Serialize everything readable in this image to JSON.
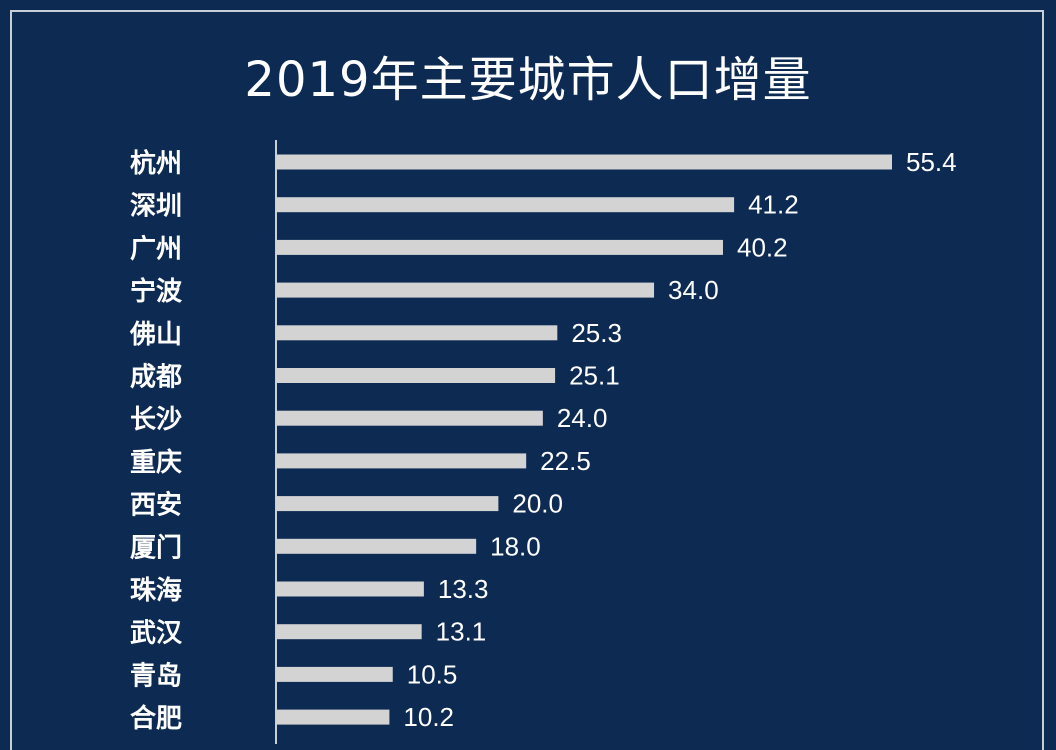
{
  "chart_data": {
    "type": "bar",
    "orientation": "horizontal",
    "title": "2019年主要城市人口增量",
    "categories": [
      "杭州",
      "深圳",
      "广州",
      "宁波",
      "佛山",
      "成都",
      "长沙",
      "重庆",
      "西安",
      "厦门",
      "珠海",
      "武汉",
      "青岛",
      "合肥"
    ],
    "values": [
      55.4,
      41.2,
      40.2,
      34.0,
      25.3,
      25.1,
      24.0,
      22.5,
      20.0,
      18.0,
      13.3,
      13.1,
      10.5,
      10.2
    ],
    "value_labels": [
      "55.4",
      "41.2",
      "40.2",
      "34.0",
      "25.3",
      "25.1",
      "24.0",
      "22.5",
      "20.0",
      "18.0",
      "13.3",
      "13.1",
      "10.5",
      "10.2"
    ],
    "xlabel": "",
    "ylabel": "",
    "xlim": [
      0,
      55.4
    ],
    "grid": false,
    "legend": "none",
    "bar_color": "#d3d3d3",
    "background_color": "#0d2a52",
    "text_color": "#ffffff"
  }
}
